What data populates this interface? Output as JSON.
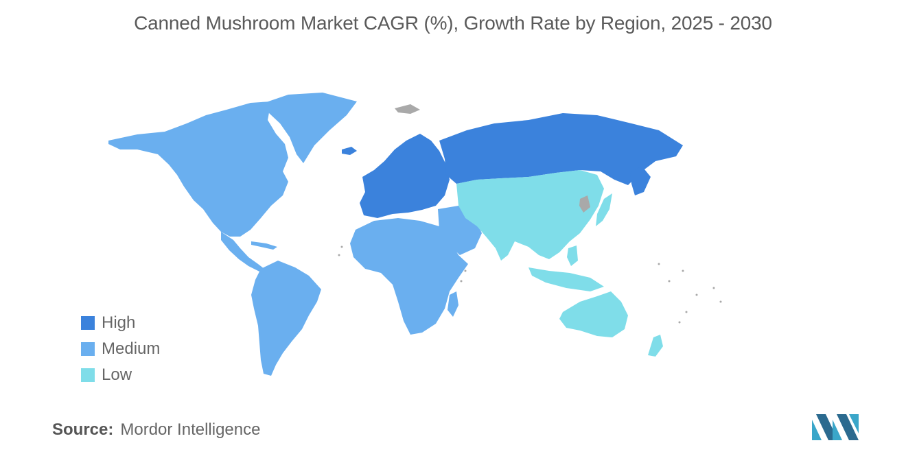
{
  "title": "Canned Mushroom Market CAGR (%), Growth Rate by Region, 2025 - 2030",
  "legend": {
    "items": [
      {
        "label": "High",
        "color": "#3b82dc"
      },
      {
        "label": "Medium",
        "color": "#6aafef"
      },
      {
        "label": "Low",
        "color": "#7fdde9"
      }
    ]
  },
  "colors": {
    "high": "#3b82dc",
    "medium": "#6aafef",
    "low": "#7fdde9",
    "no_data": "#a9a9a9"
  },
  "regions": {
    "north_america": "Medium",
    "south_america": "Medium",
    "africa": "Medium",
    "middle_east": "Medium",
    "europe": "High",
    "russia": "High",
    "asia_pacific": "Low",
    "australia_nz": "Low",
    "greenland": "Medium"
  },
  "source": {
    "label": "Source:",
    "value": "Mordor Intelligence"
  }
}
